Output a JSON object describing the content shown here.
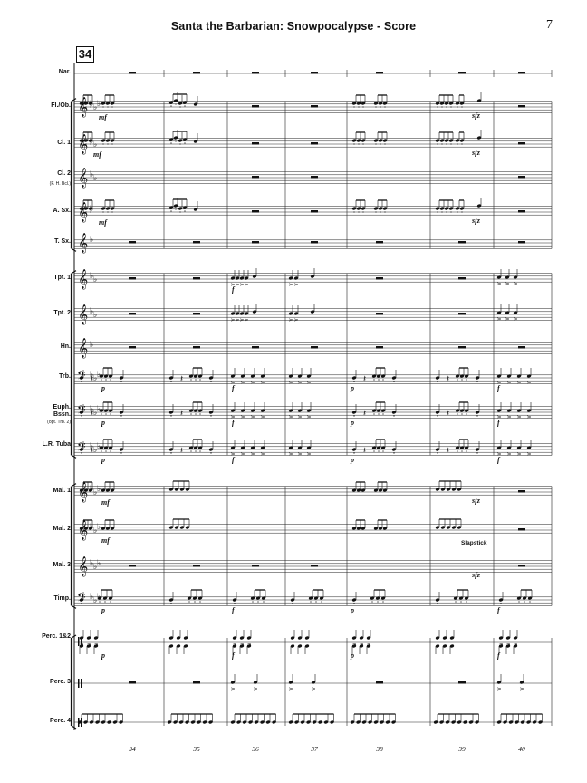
{
  "page": {
    "title": "Santa the Barbarian: Snowpocalypse - Score",
    "page_number": "7",
    "rehearsal_mark": "34"
  },
  "instruments": [
    {
      "name": "Nar."
    },
    {
      "name": "Fl./Ob."
    },
    {
      "name": "Cl. 1"
    },
    {
      "name": "Cl. 2",
      "sub": "(F. H. Bcl.)"
    },
    {
      "name": "A. Sx."
    },
    {
      "name": "T. Sx."
    },
    {
      "name": "Tpt. 1"
    },
    {
      "name": "Tpt. 2"
    },
    {
      "name": "Hn."
    },
    {
      "name": "Trb."
    },
    {
      "name": "Euph. Bssn.",
      "sub": "(opt. Trb. 2)"
    },
    {
      "name": "L.R. Tuba"
    },
    {
      "name": "Mal. 1"
    },
    {
      "name": "Mal. 2"
    },
    {
      "name": "Mal. 3"
    },
    {
      "name": "Timp."
    },
    {
      "name": "Perc. 1&2"
    },
    {
      "name": "Perc. 3"
    },
    {
      "name": "Perc. 4"
    }
  ],
  "measure_numbers": [
    "34",
    "35",
    "36",
    "37",
    "38",
    "39",
    "40"
  ],
  "markings": {
    "mf": "mf",
    "p": "p",
    "f": "f",
    "sfz": "sfz",
    "slapstick": "Slapstick"
  }
}
